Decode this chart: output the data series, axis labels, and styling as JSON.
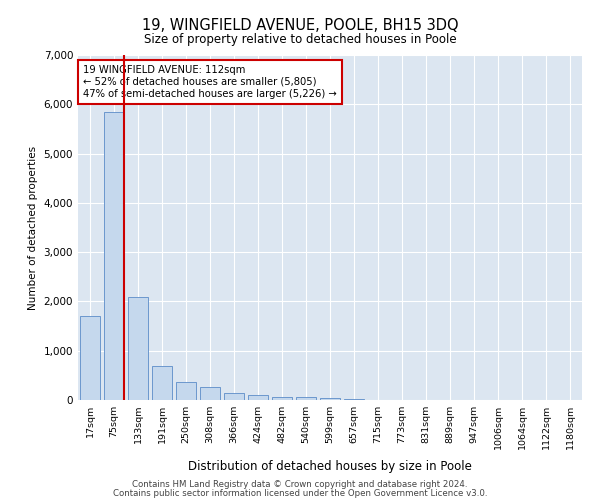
{
  "title": "19, WINGFIELD AVENUE, POOLE, BH15 3DQ",
  "subtitle": "Size of property relative to detached houses in Poole",
  "xlabel": "Distribution of detached houses by size in Poole",
  "ylabel": "Number of detached properties",
  "annotation_line1": "19 WINGFIELD AVENUE: 112sqm",
  "annotation_line2": "← 52% of detached houses are smaller (5,805)",
  "annotation_line3": "47% of semi-detached houses are larger (5,226) →",
  "bar_color": "#c5d8ed",
  "bar_edge_color": "#5b8cc8",
  "vline_color": "#cc0000",
  "background_color": "#ffffff",
  "plot_bg_color": "#dce6f1",
  "grid_color": "#ffffff",
  "categories": [
    "17sqm",
    "75sqm",
    "133sqm",
    "191sqm",
    "250sqm",
    "308sqm",
    "366sqm",
    "424sqm",
    "482sqm",
    "540sqm",
    "599sqm",
    "657sqm",
    "715sqm",
    "773sqm",
    "831sqm",
    "889sqm",
    "947sqm",
    "1006sqm",
    "1064sqm",
    "1122sqm",
    "1180sqm"
  ],
  "values": [
    1700,
    5850,
    2100,
    700,
    375,
    260,
    145,
    100,
    65,
    55,
    40,
    20,
    10,
    0,
    0,
    0,
    0,
    0,
    0,
    0,
    0
  ],
  "ylim": [
    0,
    7000
  ],
  "yticks": [
    0,
    1000,
    2000,
    3000,
    4000,
    5000,
    6000,
    7000
  ],
  "vline_x": 1.43,
  "footer_line1": "Contains HM Land Registry data © Crown copyright and database right 2024.",
  "footer_line2": "Contains public sector information licensed under the Open Government Licence v3.0."
}
